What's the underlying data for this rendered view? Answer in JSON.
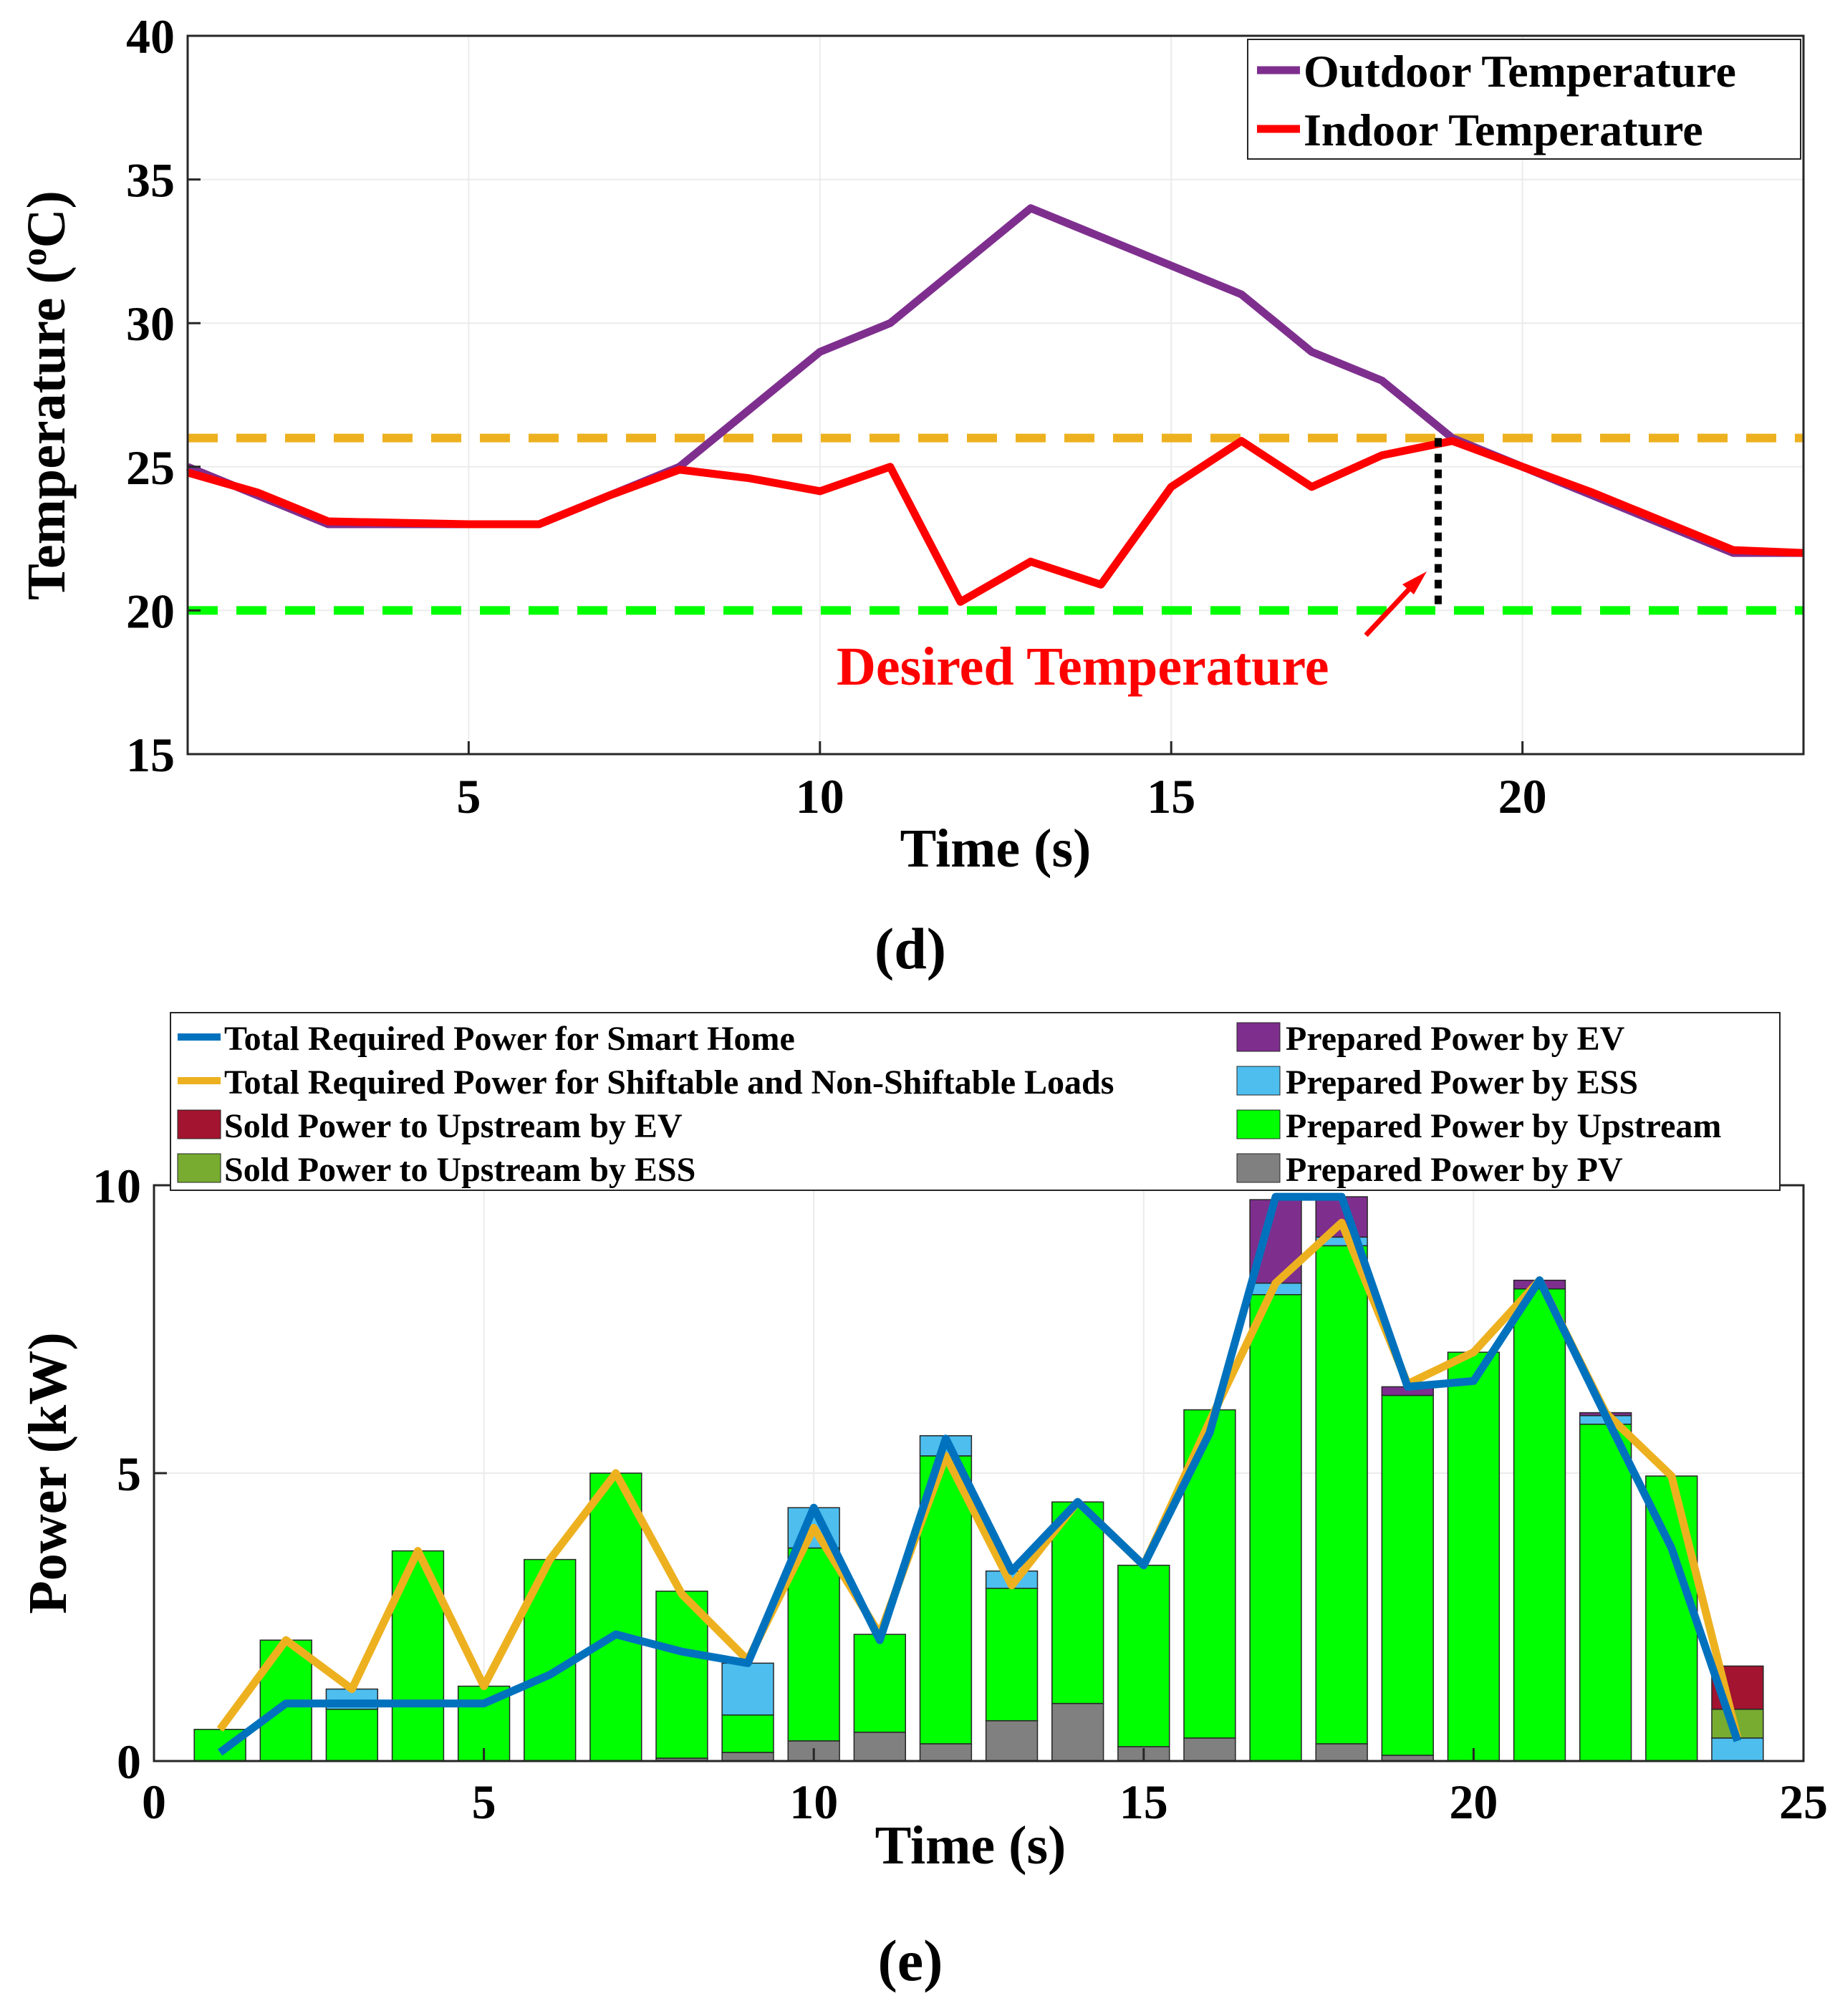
{
  "chart_data": [
    {
      "type": "line",
      "panel_label": "(d)",
      "xlabel": "Time (s)",
      "ylabel_prefix": "Temperature (",
      "ylabel_sup": "o",
      "ylabel_suffix": "C)",
      "xlim": [
        1,
        24
      ],
      "ylim": [
        15,
        40
      ],
      "x_ticks": [
        5,
        10,
        15,
        20
      ],
      "y_ticks": [
        15,
        20,
        25,
        30,
        35,
        40
      ],
      "grid": true,
      "legend_position": "top-right",
      "series": [
        {
          "name": "Outdoor Temperature",
          "color": "#7E2F8E",
          "x": [
            1,
            2,
            3,
            4,
            5,
            6,
            7,
            8,
            9,
            10,
            11,
            12,
            13,
            14,
            15,
            16,
            17,
            18,
            19,
            20,
            21,
            22,
            23,
            24
          ],
          "y": [
            25,
            24,
            23,
            23,
            23,
            23,
            24,
            25,
            27,
            29,
            30,
            32,
            34,
            33,
            32,
            31,
            29,
            28,
            26,
            25,
            24,
            23,
            22,
            22
          ]
        },
        {
          "name": "Indoor Temperature",
          "color": "#FF0000",
          "x": [
            1,
            2,
            3,
            4,
            5,
            6,
            7,
            8,
            9,
            10,
            11,
            12,
            13,
            14,
            15,
            16,
            17,
            18,
            19,
            20,
            21,
            22,
            23,
            24
          ],
          "y": [
            24.8,
            24.1,
            23.1,
            23.05,
            23,
            23,
            24,
            24.9,
            24.6,
            24.15,
            25,
            20.3,
            21.7,
            20.9,
            24.3,
            25.9,
            24.3,
            25.4,
            25.9,
            25,
            24.1,
            23.1,
            22.1,
            22
          ]
        }
      ],
      "reference_lines": [
        {
          "name": "upper comfort bound",
          "y": 26,
          "color": "#EDB120"
        },
        {
          "name": "lower comfort bound",
          "y": 20,
          "color": "#00FF00"
        }
      ],
      "annotation": {
        "text": "Desired Temperature",
        "color": "#FF0000",
        "marker_x": 18.8,
        "marker_y_range": [
          20,
          26
        ]
      }
    },
    {
      "type": "bar",
      "panel_label": "(e)",
      "xlabel": "Time (s)",
      "ylabel": "Power (kW)",
      "xlim": [
        0,
        25
      ],
      "ylim": [
        0,
        10
      ],
      "x_ticks": [
        0,
        5,
        10,
        15,
        20,
        25
      ],
      "y_ticks": [
        0,
        5,
        10
      ],
      "grid": true,
      "legend_position": "top",
      "categories": [
        1,
        2,
        3,
        4,
        5,
        6,
        7,
        8,
        9,
        10,
        11,
        12,
        13,
        14,
        15,
        16,
        17,
        18,
        19,
        20,
        21,
        22,
        23,
        24
      ],
      "stacked_series": [
        {
          "name": "Prepared Power by PV",
          "color": "#808080",
          "values": [
            0,
            0,
            0,
            0,
            0,
            0,
            0,
            0.05,
            0.15,
            0.35,
            0.5,
            0.3,
            0.7,
            1.0,
            0.25,
            0.4,
            0,
            0.3,
            0.1,
            0,
            0,
            0,
            0,
            0
          ]
        },
        {
          "name": "Prepared Power by Upstream",
          "color": "#00FF00",
          "values": [
            0.55,
            2.1,
            0.9,
            3.65,
            1.3,
            3.5,
            5.0,
            2.9,
            0.65,
            3.35,
            1.7,
            5.0,
            2.3,
            3.5,
            3.15,
            5.7,
            8.1,
            8.65,
            6.25,
            7.1,
            8.2,
            5.85,
            4.95,
            0
          ]
        },
        {
          "name": "Prepared Power by ESS",
          "color": "#4DBEEE",
          "values": [
            0,
            0,
            0.35,
            0,
            0,
            0,
            0,
            0,
            0.9,
            0.7,
            0,
            0.35,
            0.3,
            0,
            0,
            0,
            0.2,
            0.15,
            0,
            0,
            0,
            0.15,
            0,
            0.4
          ]
        },
        {
          "name": "Prepared Power by EV",
          "color": "#7E2F8E",
          "values": [
            0,
            0,
            0,
            0,
            0,
            0,
            0,
            0,
            0,
            0,
            0,
            0,
            0,
            0,
            0,
            0,
            1.45,
            0.7,
            0.15,
            0,
            0.15,
            0.05,
            0,
            0
          ]
        },
        {
          "name": "Sold Power to Upstream by ESS",
          "color": "#77AC30",
          "values": [
            0,
            0,
            0,
            0,
            0,
            0,
            0,
            0,
            0,
            0,
            0,
            0,
            0,
            0,
            0,
            0,
            0,
            0,
            0,
            0,
            0,
            0,
            0,
            0.5
          ]
        },
        {
          "name": "Sold Power to Upstream by EV",
          "color": "#A2142F",
          "values": [
            0,
            0,
            0,
            0,
            0,
            0,
            0,
            0,
            0,
            0,
            0,
            0,
            0,
            0,
            0,
            0,
            0,
            0,
            0,
            0,
            0,
            0,
            0,
            0.75
          ]
        }
      ],
      "line_series": [
        {
          "name": "Total Required Power for Smart Home",
          "color": "#0072BD",
          "values": [
            0.15,
            1.0,
            1.0,
            1.0,
            1.0,
            1.5,
            2.2,
            1.9,
            1.7,
            4.4,
            2.1,
            5.6,
            3.3,
            4.5,
            3.4,
            5.7,
            9.8,
            9.8,
            6.5,
            6.6,
            8.35,
            6.0,
            3.7,
            0.35
          ]
        },
        {
          "name": "Total Required Power for Shiftable and Non-Shiftable Loads",
          "color": "#EDB120",
          "values": [
            0.55,
            2.1,
            1.25,
            3.65,
            1.3,
            3.5,
            5.0,
            2.9,
            1.75,
            4.05,
            2.2,
            5.3,
            3.05,
            4.5,
            3.4,
            5.9,
            8.3,
            9.35,
            6.55,
            7.1,
            8.35,
            6.05,
            4.95,
            0.4
          ]
        }
      ],
      "legend_order_left": [
        "Total Required Power for Smart Home",
        "Total Required Power for Shiftable and Non-Shiftable Loads",
        "Sold Power to Upstream by EV",
        "Sold Power to Upstream by ESS"
      ],
      "legend_order_right": [
        "Prepared Power by EV",
        "Prepared Power by ESS",
        "Prepared Power by Upstream",
        "Prepared Power by PV"
      ]
    }
  ]
}
